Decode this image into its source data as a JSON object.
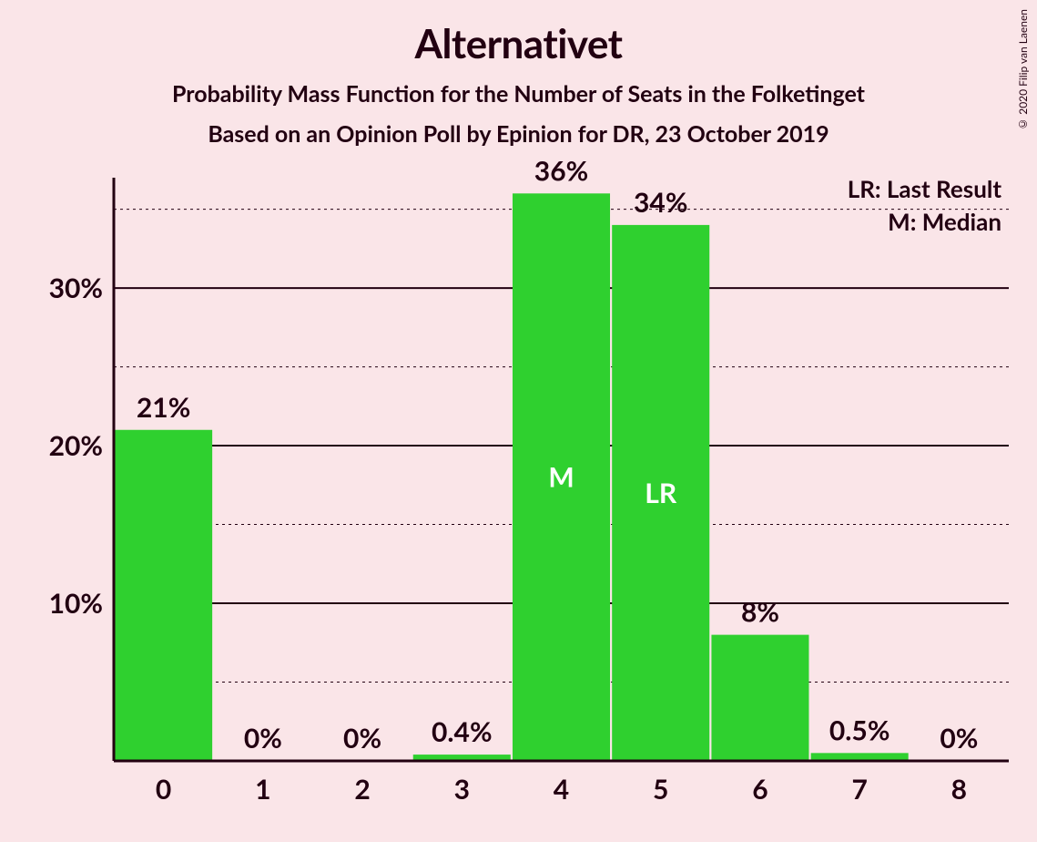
{
  "copyright": "© 2020 Filip van Laenen",
  "titles": {
    "main": "Alternativet",
    "sub1": "Probability Mass Function for the Number of Seats in the Folketinget",
    "sub2": "Based on an Opinion Poll by Epinion for DR, 23 October 2019"
  },
  "legend": {
    "lr": "LR: Last Result",
    "m": "M: Median"
  },
  "chart": {
    "type": "bar",
    "background_color": "#fae5e8",
    "bar_color": "#2fd02f",
    "axis_color": "#220011",
    "text_color": "#220011",
    "marker_text_color": "#ffffff",
    "ylim": [
      0,
      37
    ],
    "y_major_ticks": [
      10,
      20,
      30
    ],
    "y_minor_ticks": [
      5,
      15,
      25,
      35
    ],
    "categories": [
      "0",
      "1",
      "2",
      "3",
      "4",
      "5",
      "6",
      "7",
      "8"
    ],
    "values": [
      21,
      0,
      0,
      0.4,
      36,
      34,
      8,
      0.5,
      0
    ],
    "value_labels": [
      "21%",
      "0%",
      "0%",
      "0.4%",
      "36%",
      "34%",
      "8%",
      "0.5%",
      "0%"
    ],
    "markers": [
      {
        "index": 4,
        "text": "M"
      },
      {
        "index": 5,
        "text": "LR"
      }
    ],
    "bar_width_ratio": 0.98,
    "title_fontsize": 44,
    "subtitle_fontsize": 25,
    "tick_fontsize": 30,
    "barlabel_fontsize": 30,
    "legend_fontsize": 26
  }
}
